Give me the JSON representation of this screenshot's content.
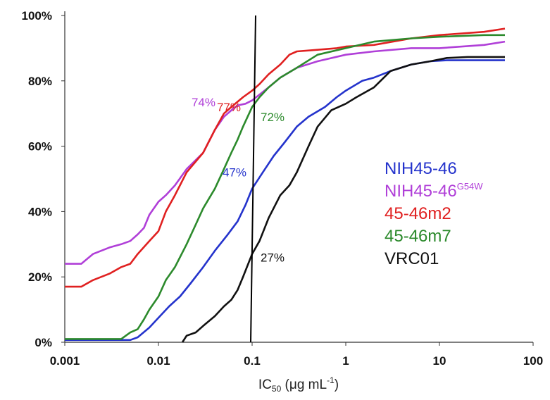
{
  "chart_data": {
    "type": "line",
    "xlabel": {
      "prefix": "IC",
      "sub": "50",
      "unit": " (μg mL",
      "sup": "-1",
      "close": ")"
    },
    "x_scale": "log",
    "xlim": [
      0.001,
      100
    ],
    "ylim": [
      0,
      100
    ],
    "x_ticks": [
      {
        "value": 0.001,
        "label": "0.001"
      },
      {
        "value": 0.01,
        "label": "0.01"
      },
      {
        "value": 0.1,
        "label": "0.1"
      },
      {
        "value": 1,
        "label": "1"
      },
      {
        "value": 10,
        "label": "10"
      },
      {
        "value": 100,
        "label": "100"
      }
    ],
    "y_ticks": [
      {
        "value": 0,
        "label": "0%"
      },
      {
        "value": 20,
        "label": "20%"
      },
      {
        "value": 40,
        "label": "40%"
      },
      {
        "value": 60,
        "label": "60%"
      },
      {
        "value": 80,
        "label": "80%"
      },
      {
        "value": 100,
        "label": "100%"
      }
    ],
    "grid": false,
    "legend_position": "right",
    "reference_line": {
      "x": 0.1,
      "color": "#000000"
    },
    "series": [
      {
        "name": "NIH45-46",
        "color": "#2433cc",
        "points": [
          [
            0.001,
            0.7
          ],
          [
            0.005,
            0.7
          ],
          [
            0.006,
            1.5
          ],
          [
            0.008,
            4.5
          ],
          [
            0.01,
            7.5
          ],
          [
            0.013,
            11
          ],
          [
            0.017,
            14
          ],
          [
            0.022,
            18
          ],
          [
            0.03,
            23
          ],
          [
            0.04,
            28
          ],
          [
            0.055,
            33
          ],
          [
            0.07,
            37
          ],
          [
            0.085,
            42
          ],
          [
            0.1,
            47
          ],
          [
            0.13,
            52
          ],
          [
            0.17,
            57
          ],
          [
            0.22,
            61
          ],
          [
            0.3,
            66
          ],
          [
            0.4,
            69
          ],
          [
            0.6,
            72
          ],
          [
            0.8,
            75
          ],
          [
            1,
            77
          ],
          [
            1.5,
            80
          ],
          [
            2,
            81
          ],
          [
            3,
            83
          ],
          [
            5,
            85
          ],
          [
            8,
            86
          ],
          [
            12,
            86.3
          ],
          [
            50,
            86.3
          ]
        ],
        "label": {
          "text": "47%",
          "x": 0.1,
          "y": 47
        }
      },
      {
        "name": "NIH45-46",
        "sup": "G54W",
        "color": "#b03fd8",
        "points": [
          [
            0.001,
            24
          ],
          [
            0.0015,
            24
          ],
          [
            0.002,
            27
          ],
          [
            0.003,
            29
          ],
          [
            0.004,
            30
          ],
          [
            0.005,
            31
          ],
          [
            0.006,
            33
          ],
          [
            0.007,
            35
          ],
          [
            0.008,
            39
          ],
          [
            0.01,
            43
          ],
          [
            0.012,
            45
          ],
          [
            0.015,
            48
          ],
          [
            0.02,
            53
          ],
          [
            0.03,
            58
          ],
          [
            0.04,
            65
          ],
          [
            0.05,
            69
          ],
          [
            0.06,
            71
          ],
          [
            0.07,
            72.5
          ],
          [
            0.085,
            73
          ],
          [
            0.1,
            74
          ],
          [
            0.15,
            78
          ],
          [
            0.2,
            81
          ],
          [
            0.3,
            84
          ],
          [
            0.5,
            86
          ],
          [
            1,
            88
          ],
          [
            2,
            89
          ],
          [
            5,
            90
          ],
          [
            10,
            90
          ],
          [
            30,
            91
          ],
          [
            50,
            92
          ]
        ],
        "label": {
          "text": "74%",
          "x": 0.1,
          "y": 74
        }
      },
      {
        "name": "45-46m2",
        "color": "#e02020",
        "points": [
          [
            0.001,
            17
          ],
          [
            0.0015,
            17
          ],
          [
            0.002,
            19
          ],
          [
            0.003,
            21
          ],
          [
            0.004,
            23
          ],
          [
            0.005,
            24
          ],
          [
            0.006,
            27
          ],
          [
            0.008,
            31
          ],
          [
            0.01,
            34
          ],
          [
            0.012,
            40
          ],
          [
            0.015,
            45
          ],
          [
            0.02,
            52
          ],
          [
            0.03,
            58
          ],
          [
            0.04,
            65
          ],
          [
            0.05,
            70
          ],
          [
            0.06,
            72
          ],
          [
            0.08,
            75
          ],
          [
            0.1,
            77
          ],
          [
            0.12,
            79
          ],
          [
            0.15,
            82
          ],
          [
            0.2,
            85
          ],
          [
            0.25,
            88
          ],
          [
            0.3,
            89
          ],
          [
            0.5,
            89.5
          ],
          [
            0.8,
            90
          ],
          [
            1,
            90.5
          ],
          [
            2,
            91
          ],
          [
            5,
            93
          ],
          [
            10,
            94
          ],
          [
            30,
            95
          ],
          [
            50,
            96
          ]
        ],
        "label": {
          "text": "77%",
          "x": 0.1,
          "y": 77
        }
      },
      {
        "name": "45-46m7",
        "color": "#2c8a2c",
        "points": [
          [
            0.001,
            1
          ],
          [
            0.004,
            1
          ],
          [
            0.005,
            3
          ],
          [
            0.006,
            4
          ],
          [
            0.007,
            7
          ],
          [
            0.008,
            10
          ],
          [
            0.01,
            14
          ],
          [
            0.012,
            19
          ],
          [
            0.015,
            23
          ],
          [
            0.02,
            30
          ],
          [
            0.025,
            36
          ],
          [
            0.03,
            41
          ],
          [
            0.04,
            47
          ],
          [
            0.05,
            53
          ],
          [
            0.06,
            58
          ],
          [
            0.07,
            62
          ],
          [
            0.08,
            66
          ],
          [
            0.1,
            72
          ],
          [
            0.12,
            75
          ],
          [
            0.15,
            78
          ],
          [
            0.2,
            81
          ],
          [
            0.3,
            84
          ],
          [
            0.5,
            88
          ],
          [
            1,
            90
          ],
          [
            2,
            92
          ],
          [
            5,
            93
          ],
          [
            10,
            93.5
          ],
          [
            30,
            94
          ],
          [
            50,
            94
          ]
        ],
        "label": {
          "text": "72%",
          "x": 0.1,
          "y": 72
        }
      },
      {
        "name": "VRC01",
        "color": "#111111",
        "points": [
          [
            0.018,
            0
          ],
          [
            0.02,
            2
          ],
          [
            0.025,
            3
          ],
          [
            0.03,
            5
          ],
          [
            0.04,
            8
          ],
          [
            0.05,
            11
          ],
          [
            0.06,
            13
          ],
          [
            0.07,
            16
          ],
          [
            0.08,
            20
          ],
          [
            0.1,
            27
          ],
          [
            0.12,
            31
          ],
          [
            0.15,
            38
          ],
          [
            0.2,
            45
          ],
          [
            0.25,
            48
          ],
          [
            0.3,
            52
          ],
          [
            0.4,
            60
          ],
          [
            0.5,
            66
          ],
          [
            0.7,
            71
          ],
          [
            1,
            73
          ],
          [
            1.3,
            75
          ],
          [
            2,
            78
          ],
          [
            3,
            83
          ],
          [
            5,
            85
          ],
          [
            8,
            86
          ],
          [
            12,
            87
          ],
          [
            20,
            87.3
          ],
          [
            50,
            87.3
          ]
        ],
        "label": {
          "text": "27%",
          "x": 0.1,
          "y": 27
        }
      }
    ]
  }
}
